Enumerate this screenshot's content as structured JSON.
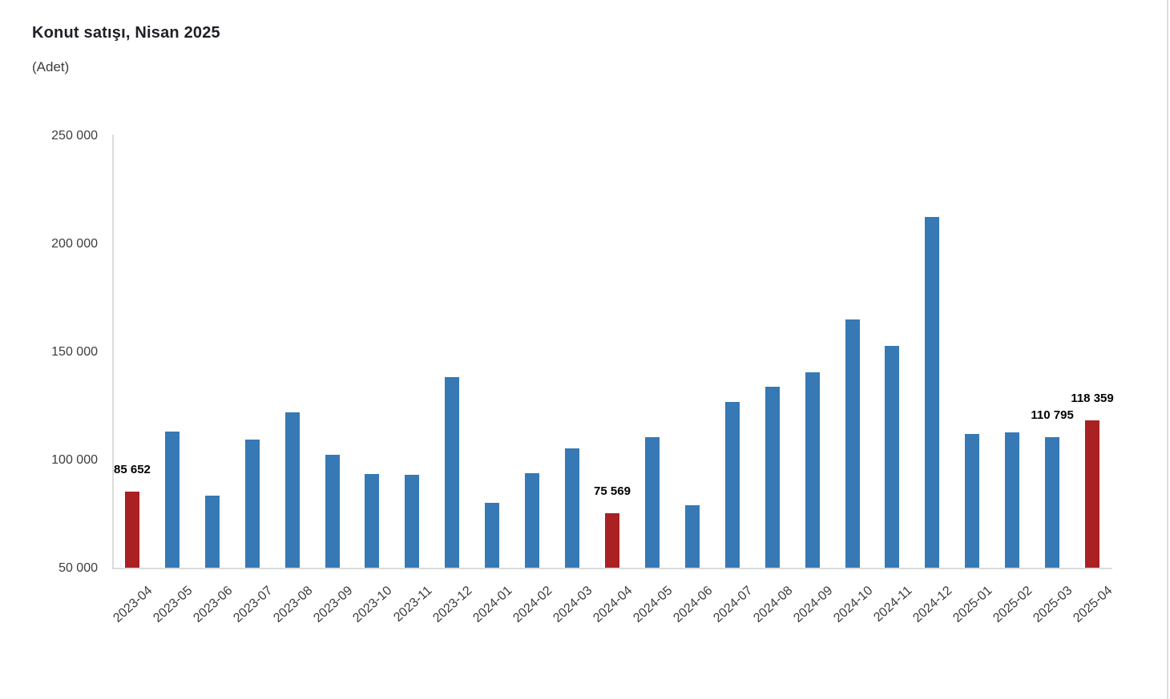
{
  "chart_data": {
    "type": "bar",
    "title": "Konut satışı, Nisan 2025",
    "subtitle": "(Adet)",
    "xlabel": "",
    "ylabel": "",
    "ylim": [
      50000,
      250000
    ],
    "grid": false,
    "legend": false,
    "categories": [
      "2023-04",
      "2023-05",
      "2023-06",
      "2023-07",
      "2023-08",
      "2023-09",
      "2023-10",
      "2023-11",
      "2023-12",
      "2024-01",
      "2024-02",
      "2024-03",
      "2024-04",
      "2024-05",
      "2024-06",
      "2024-07",
      "2024-08",
      "2024-09",
      "2024-10",
      "2024-11",
      "2024-12",
      "2025-01",
      "2025-02",
      "2025-03",
      "2025-04"
    ],
    "values": [
      85652,
      113276,
      83636,
      109548,
      122091,
      102656,
      93761,
      93514,
      138577,
      80308,
      93902,
      105394,
      75569,
      110588,
      79313,
      127088,
      134155,
      140919,
      165138,
      153014,
      212637,
      112173,
      112818,
      110795,
      118359
    ],
    "highlight_categories": [
      "2023-04",
      "2024-04",
      "2025-04"
    ],
    "data_labels": {
      "2023-04": "85 652",
      "2024-04": "75 569",
      "2025-03": "110 795",
      "2025-04": "118 359"
    },
    "yticks": [
      {
        "label": "250 000",
        "value": 250000
      },
      {
        "label": "200 000",
        "value": 200000
      },
      {
        "label": "150 000",
        "value": 150000
      },
      {
        "label": "100 000",
        "value": 100000
      },
      {
        "label": "50 000",
        "value": 50000
      }
    ],
    "colors": {
      "bar": "#3679B5",
      "highlight": "#A92123",
      "axis": "#DCDCDC",
      "tick_text": "#3D3D3D",
      "label_text": "#000000",
      "title_text": "#1F1F28"
    }
  }
}
